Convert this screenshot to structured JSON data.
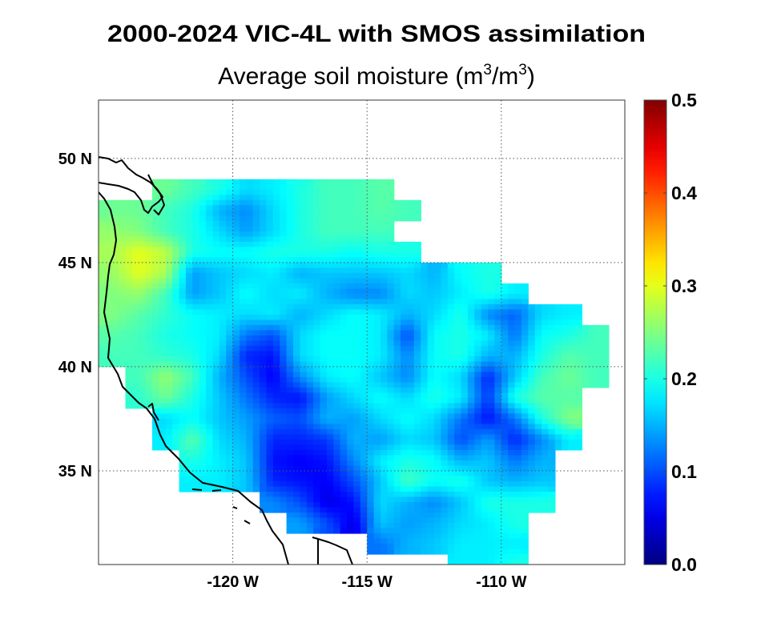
{
  "title": "2000-2024 VIC-4L with SMOS assimilation",
  "subtitle_prefix": "Average soil moisture (m",
  "subtitle_sup1": "3",
  "subtitle_mid": "/m",
  "subtitle_sup2": "3",
  "subtitle_suffix": ")",
  "chart_data": {
    "type": "heatmap",
    "title": "2000-2024 VIC-4L with SMOS assimilation",
    "subtitle": "Average soil moisture (m3/m3)",
    "colormap": "jet",
    "color_range": [
      0.0,
      0.5
    ],
    "colorbar_ticks": [
      "0.0",
      "0.1",
      "0.2",
      "0.3",
      "0.4",
      "0.5"
    ],
    "colorbar_placement": "right",
    "x_range_lon": [
      -125,
      -105.4
    ],
    "y_range_lat": [
      30.5,
      52.8
    ],
    "x_ticks": [
      {
        "value": -120,
        "label": "-120 W"
      },
      {
        "value": -115,
        "label": "-115 W"
      },
      {
        "value": -110,
        "label": "-110 W"
      }
    ],
    "y_ticks": [
      {
        "value": 50,
        "label": "50 N"
      },
      {
        "value": 45,
        "label": "45 N"
      },
      {
        "value": 40,
        "label": "40 N"
      },
      {
        "value": 35,
        "label": "35 N"
      }
    ],
    "grid": true,
    "coastline": true,
    "grid_cell_deg": 1,
    "lon_west_edge": -125,
    "lat_north_edge": 49,
    "values": [
      [
        null,
        null,
        0.24,
        0.22,
        0.2,
        0.17,
        0.18,
        0.2,
        0.22,
        0.22,
        0.23,
        null,
        null,
        null,
        null,
        null,
        null,
        null,
        null
      ],
      [
        0.24,
        0.24,
        0.22,
        0.2,
        0.15,
        0.13,
        0.17,
        0.2,
        0.22,
        0.22,
        0.23,
        0.22,
        null,
        null,
        null,
        null,
        null,
        null,
        null
      ],
      [
        0.26,
        0.25,
        0.22,
        0.2,
        0.17,
        0.14,
        0.17,
        0.2,
        0.22,
        0.22,
        0.22,
        null,
        null,
        null,
        null,
        null,
        null,
        null,
        null
      ],
      [
        0.27,
        0.3,
        0.28,
        0.2,
        0.19,
        0.19,
        0.2,
        0.2,
        0.2,
        0.19,
        0.2,
        0.2,
        null,
        null,
        null,
        null,
        null,
        null,
        null
      ],
      [
        0.26,
        0.3,
        0.27,
        0.14,
        0.16,
        0.17,
        0.18,
        0.15,
        0.16,
        0.16,
        0.16,
        0.17,
        0.15,
        0.19,
        0.2,
        null,
        null,
        null,
        null
      ],
      [
        0.25,
        0.26,
        0.22,
        0.14,
        0.16,
        0.19,
        0.17,
        0.18,
        0.15,
        0.13,
        0.13,
        0.17,
        0.16,
        0.18,
        0.2,
        0.18,
        null,
        null,
        null
      ],
      [
        0.25,
        0.23,
        0.21,
        0.19,
        0.18,
        0.17,
        0.18,
        0.15,
        0.17,
        0.19,
        0.18,
        0.15,
        0.17,
        0.2,
        0.13,
        0.11,
        0.17,
        0.18,
        null
      ],
      [
        0.23,
        0.22,
        0.2,
        0.19,
        0.18,
        0.12,
        0.1,
        0.17,
        0.19,
        0.19,
        0.18,
        0.1,
        0.19,
        0.2,
        0.18,
        0.12,
        0.19,
        0.2,
        0.22
      ],
      [
        0.22,
        0.22,
        0.21,
        0.2,
        0.17,
        0.08,
        0.07,
        0.17,
        0.19,
        0.19,
        0.18,
        0.13,
        0.19,
        0.2,
        0.15,
        0.15,
        0.2,
        0.23,
        0.22
      ],
      [
        null,
        0.22,
        0.26,
        0.22,
        0.15,
        0.1,
        0.06,
        0.13,
        0.18,
        0.19,
        0.16,
        0.13,
        0.19,
        0.17,
        0.08,
        0.16,
        0.22,
        0.24,
        0.22
      ],
      [
        null,
        0.21,
        0.24,
        0.2,
        0.16,
        0.12,
        0.08,
        0.07,
        0.14,
        0.17,
        0.19,
        0.17,
        0.2,
        0.18,
        0.09,
        0.2,
        0.23,
        0.23,
        null
      ],
      [
        null,
        null,
        0.17,
        0.19,
        0.16,
        0.14,
        0.11,
        0.1,
        0.15,
        0.14,
        0.17,
        0.19,
        0.17,
        0.12,
        0.07,
        0.12,
        0.2,
        0.25,
        null
      ],
      [
        null,
        null,
        0.18,
        0.23,
        0.17,
        0.15,
        0.08,
        0.08,
        0.09,
        0.15,
        0.14,
        0.17,
        0.16,
        0.1,
        0.14,
        0.08,
        0.13,
        0.18,
        null
      ],
      [
        null,
        null,
        null,
        0.2,
        0.18,
        0.16,
        0.07,
        0.06,
        0.07,
        0.13,
        0.18,
        0.2,
        0.19,
        0.15,
        0.16,
        0.12,
        0.15,
        null,
        null
      ],
      [
        null,
        null,
        null,
        0.18,
        0.18,
        0.16,
        0.08,
        0.07,
        0.06,
        0.1,
        0.16,
        0.22,
        0.19,
        0.2,
        0.16,
        0.15,
        0.16,
        null,
        null
      ],
      [
        null,
        null,
        null,
        null,
        null,
        null,
        0.13,
        0.1,
        0.05,
        0.07,
        0.17,
        0.15,
        0.13,
        0.16,
        0.2,
        0.2,
        0.2,
        null,
        null
      ],
      [
        null,
        null,
        null,
        null,
        null,
        null,
        null,
        0.14,
        0.1,
        0.05,
        0.16,
        0.14,
        0.15,
        0.17,
        0.18,
        0.2,
        null,
        null,
        null
      ],
      [
        null,
        null,
        null,
        null,
        null,
        null,
        null,
        null,
        null,
        null,
        0.12,
        0.15,
        0.16,
        0.18,
        0.18,
        0.18,
        null,
        null,
        null
      ],
      [
        null,
        null,
        null,
        null,
        null,
        null,
        null,
        null,
        null,
        null,
        null,
        null,
        null,
        0.18,
        0.18,
        0.2,
        null,
        null,
        null
      ]
    ]
  }
}
